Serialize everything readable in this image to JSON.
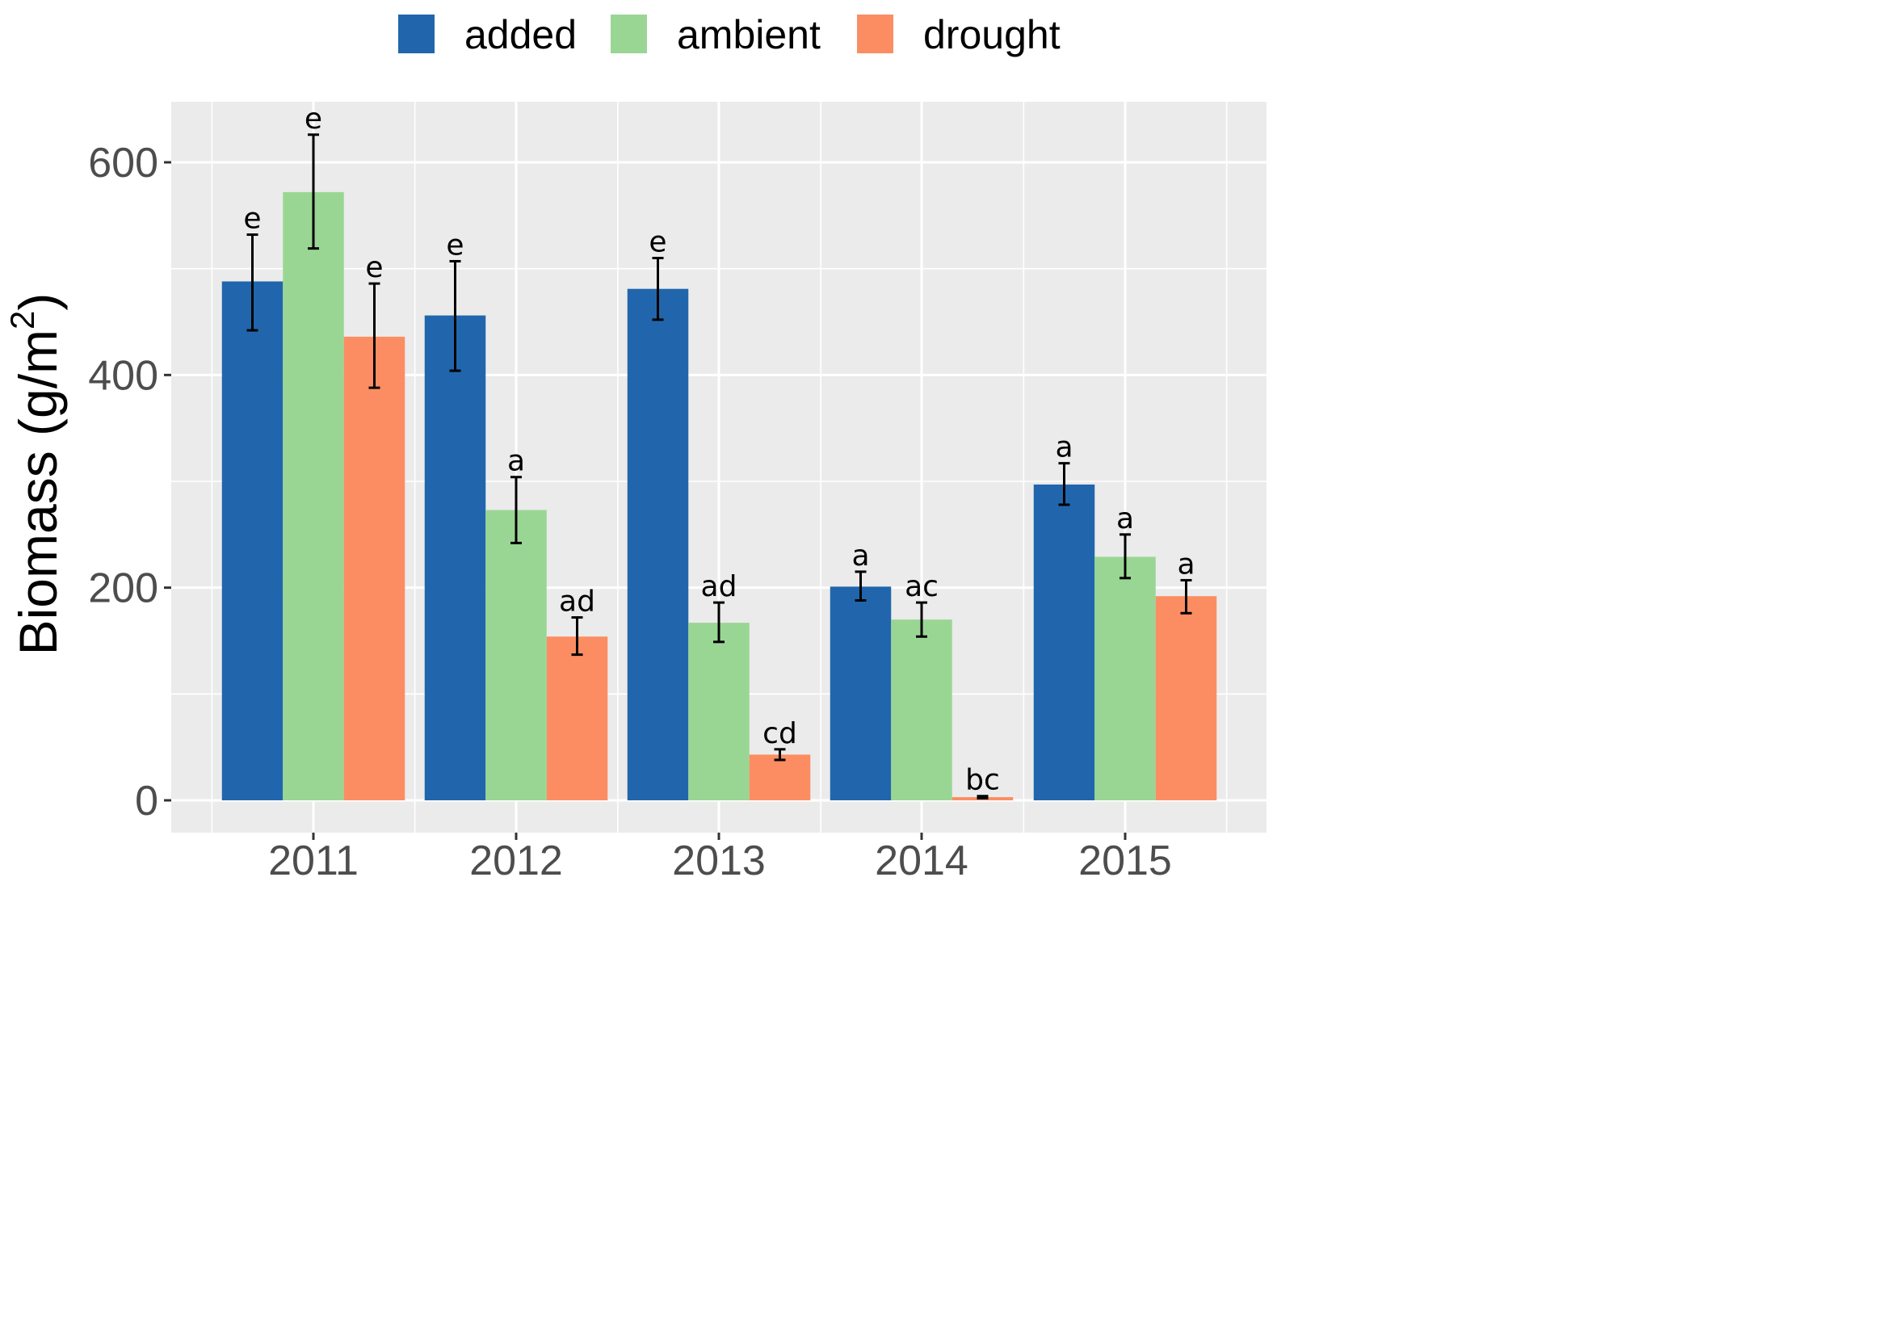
{
  "chart_data": {
    "type": "bar",
    "categories": [
      "2011",
      "2012",
      "2013",
      "2014",
      "2015"
    ],
    "series": [
      {
        "name": "added",
        "color": "#2166AC",
        "values": [
          488,
          456,
          481,
          201,
          297
        ],
        "error": [
          [
            442,
            532
          ],
          [
            404,
            507
          ],
          [
            452,
            510
          ],
          [
            188,
            215
          ],
          [
            278,
            317
          ]
        ],
        "letters": [
          "e",
          "e",
          "e",
          "a",
          "a"
        ]
      },
      {
        "name": "ambient",
        "color": "#9AD693",
        "values": [
          572,
          273,
          167,
          170,
          229
        ],
        "error": [
          [
            519,
            626
          ],
          [
            242,
            304
          ],
          [
            149,
            186
          ],
          [
            154,
            186
          ],
          [
            209,
            250
          ]
        ],
        "letters": [
          "e",
          "a",
          "ad",
          "ac",
          "a"
        ]
      },
      {
        "name": "drought",
        "color": "#FC8D62",
        "values": [
          436,
          154,
          43,
          3,
          192
        ],
        "error": [
          [
            388,
            486
          ],
          [
            137,
            172
          ],
          [
            38,
            48
          ],
          [
            2,
            4
          ],
          [
            176,
            207
          ]
        ],
        "letters": [
          "e",
          "ad",
          "cd",
          "bc",
          "a"
        ]
      }
    ],
    "xlabel": "",
    "ylabel": "Biomass (g/m",
    "ylabel_superscript": "2",
    "ylabel_close": ")",
    "ylim": [
      -30,
      656
    ],
    "yticks": [
      0,
      200,
      400,
      600
    ],
    "ytick_labels": [
      "0",
      "200",
      "400",
      "600"
    ],
    "grid": true,
    "legend_position": "top"
  },
  "style": {
    "panel_background": "#EBEBEB",
    "grid_color": "#FFFFFF",
    "error_bar_color": "#000000"
  }
}
